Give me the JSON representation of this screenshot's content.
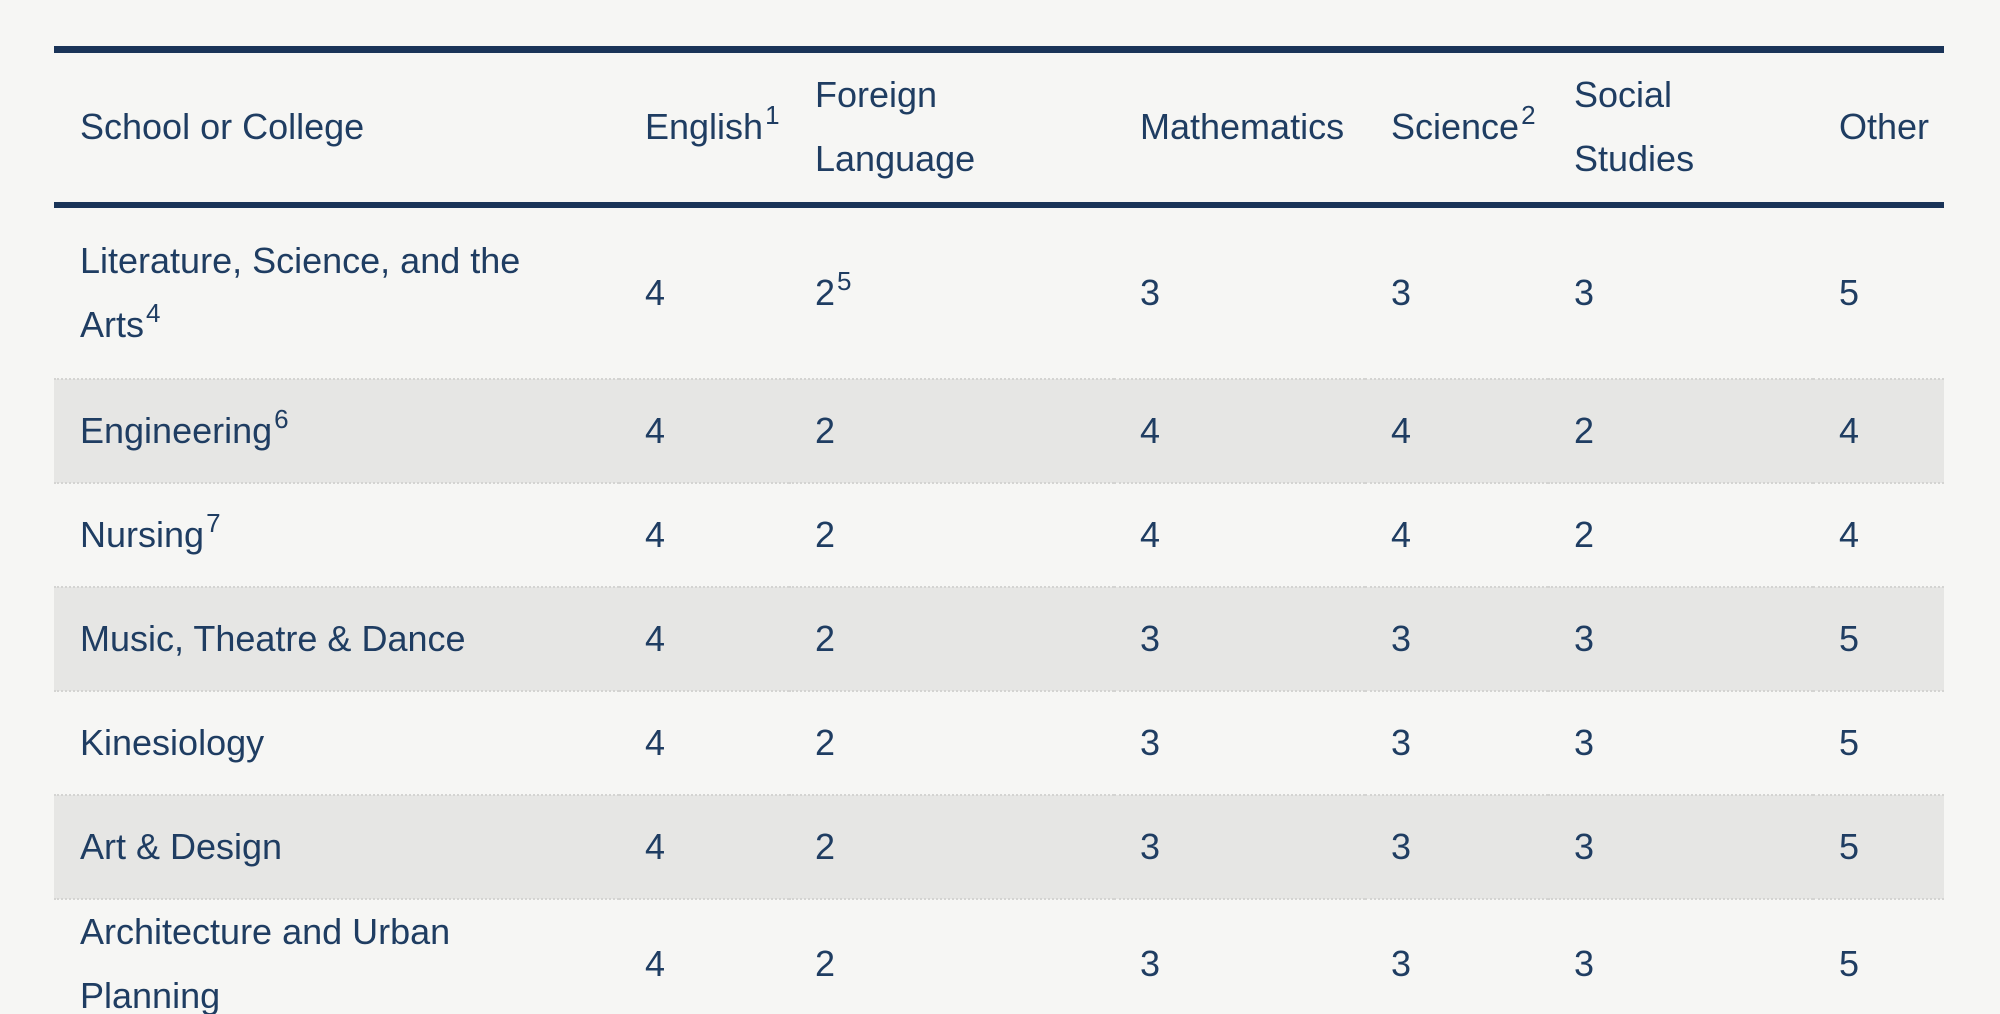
{
  "colors": {
    "navy_rule": "#1a3458",
    "text_navy": "#1f3d62",
    "row_stripe": "#e6e6e4",
    "page_background": "#f6f6f4"
  },
  "table": {
    "columns": [
      {
        "line1": "School or College",
        "line2": "",
        "sup": ""
      },
      {
        "line1": "English",
        "line2": "",
        "sup": "1"
      },
      {
        "line1": "Foreign",
        "line2": "Language",
        "sup": ""
      },
      {
        "line1": "Mathematics",
        "line2": "",
        "sup": ""
      },
      {
        "line1": "Science",
        "line2": "",
        "sup": "2"
      },
      {
        "line1": "Social",
        "line2": "Studies",
        "sup": ""
      },
      {
        "line1": "Other",
        "line2": "",
        "sup": ""
      }
    ],
    "rows": [
      {
        "label": "Literature, Science, and the Arts",
        "label_sup": "4",
        "cells": [
          {
            "v": "4",
            "sup": ""
          },
          {
            "v": "2",
            "sup": "5"
          },
          {
            "v": "3",
            "sup": ""
          },
          {
            "v": "3",
            "sup": ""
          },
          {
            "v": "3",
            "sup": ""
          },
          {
            "v": "5",
            "sup": ""
          }
        ]
      },
      {
        "label": "Engineering",
        "label_sup": "6",
        "cells": [
          {
            "v": "4",
            "sup": ""
          },
          {
            "v": "2",
            "sup": ""
          },
          {
            "v": "4",
            "sup": ""
          },
          {
            "v": "4",
            "sup": ""
          },
          {
            "v": "2",
            "sup": ""
          },
          {
            "v": "4",
            "sup": ""
          }
        ]
      },
      {
        "label": "Nursing",
        "label_sup": "7",
        "cells": [
          {
            "v": "4",
            "sup": ""
          },
          {
            "v": "2",
            "sup": ""
          },
          {
            "v": "4",
            "sup": ""
          },
          {
            "v": "4",
            "sup": ""
          },
          {
            "v": "2",
            "sup": ""
          },
          {
            "v": "4",
            "sup": ""
          }
        ]
      },
      {
        "label": "Music, Theatre & Dance",
        "label_sup": "",
        "cells": [
          {
            "v": "4",
            "sup": ""
          },
          {
            "v": "2",
            "sup": ""
          },
          {
            "v": "3",
            "sup": ""
          },
          {
            "v": "3",
            "sup": ""
          },
          {
            "v": "3",
            "sup": ""
          },
          {
            "v": "5",
            "sup": ""
          }
        ]
      },
      {
        "label": "Kinesiology",
        "label_sup": "",
        "cells": [
          {
            "v": "4",
            "sup": ""
          },
          {
            "v": "2",
            "sup": ""
          },
          {
            "v": "3",
            "sup": ""
          },
          {
            "v": "3",
            "sup": ""
          },
          {
            "v": "3",
            "sup": ""
          },
          {
            "v": "5",
            "sup": ""
          }
        ]
      },
      {
        "label": "Art & Design",
        "label_sup": "",
        "cells": [
          {
            "v": "4",
            "sup": ""
          },
          {
            "v": "2",
            "sup": ""
          },
          {
            "v": "3",
            "sup": ""
          },
          {
            "v": "3",
            "sup": ""
          },
          {
            "v": "3",
            "sup": ""
          },
          {
            "v": "5",
            "sup": ""
          }
        ]
      },
      {
        "label": "Architecture and Urban Planning",
        "label_sup": "",
        "cells": [
          {
            "v": "4",
            "sup": ""
          },
          {
            "v": "2",
            "sup": ""
          },
          {
            "v": "3",
            "sup": ""
          },
          {
            "v": "3",
            "sup": ""
          },
          {
            "v": "3",
            "sup": ""
          },
          {
            "v": "5",
            "sup": ""
          }
        ]
      }
    ]
  }
}
